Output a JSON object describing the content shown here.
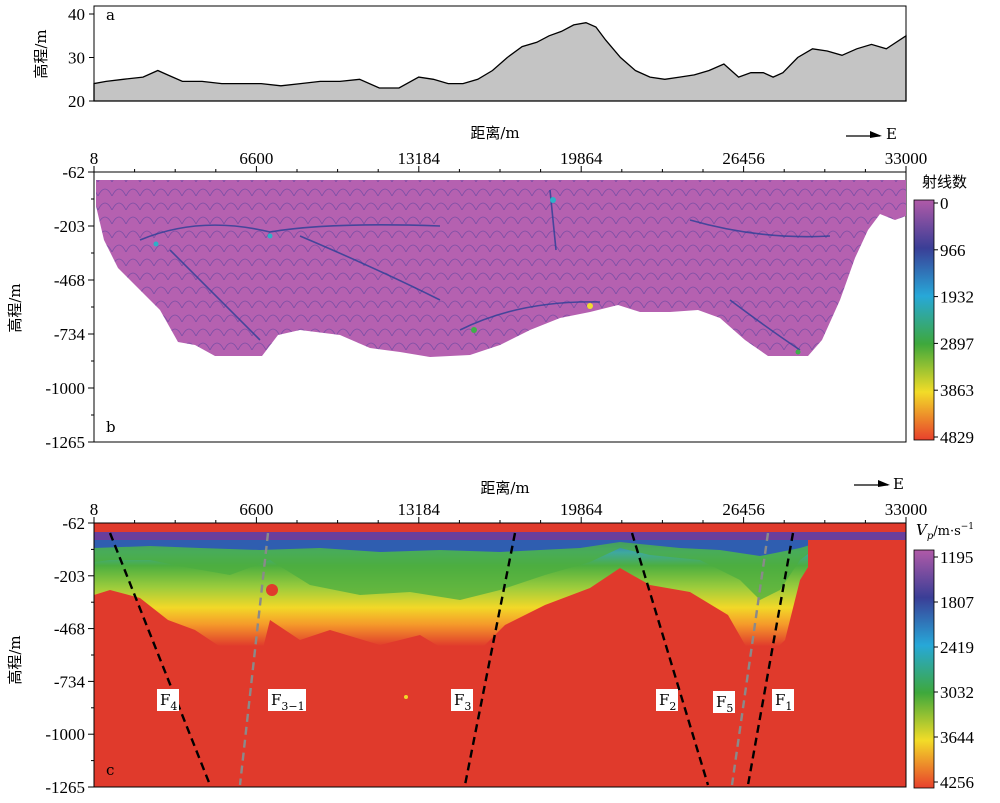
{
  "chart_data": [
    {
      "type": "area",
      "panel_label": "a",
      "ylabel": "高程/m",
      "yticks": [
        "40",
        "30",
        "20"
      ],
      "ylim": [
        20,
        40
      ],
      "xlim": [
        8,
        33000
      ],
      "series": [
        {
          "x": [
            8,
            500,
            1200,
            2000,
            2600,
            3000,
            3600,
            4400,
            5200,
            6000,
            6800,
            7600,
            8400,
            9200,
            10000,
            10800,
            11600,
            12400,
            13200,
            13800,
            14400,
            15000,
            15600,
            16200,
            16800,
            17400,
            18000,
            18500,
            19000,
            19500,
            20000,
            20400,
            20800,
            21400,
            22000,
            22600,
            23200,
            23800,
            24400,
            25000,
            25600,
            26200,
            26700,
            27200,
            27600,
            28000,
            28600,
            29200,
            29800,
            30400,
            31000,
            31600,
            32200,
            33000
          ],
          "y": [
            24,
            24.5,
            25,
            25.5,
            27,
            26,
            24.5,
            24.5,
            24,
            24,
            24,
            23.5,
            24,
            24.5,
            24.5,
            25,
            23,
            23,
            25.5,
            25,
            24,
            24,
            25,
            27,
            30,
            32.5,
            33.5,
            35,
            36,
            37.5,
            38,
            37,
            34,
            30,
            27,
            25.5,
            25,
            25.5,
            26,
            27,
            28.5,
            25.5,
            26.5,
            26.5,
            25.5,
            26.5,
            30,
            32,
            31.5,
            30.5,
            32,
            33,
            32,
            35
          ]
        }
      ]
    },
    {
      "type": "heatmap",
      "panel_label": "b",
      "xlabel": "距离/m",
      "xticks": [
        "8",
        "6600",
        "13184",
        "19864",
        "26456",
        "33000"
      ],
      "ylabel": "高程/m",
      "yticks": [
        "-62",
        "-203",
        "-468",
        "-734",
        "-1000",
        "-1265"
      ],
      "direction_label": "E",
      "colorbar_title": "射线数",
      "colorbar_ticks": [
        "0",
        "966",
        "1932",
        "2897",
        "3863",
        "4829"
      ],
      "colorscale": [
        "#b05aa8",
        "#3a3e96",
        "#27a8d8",
        "#3ea83c",
        "#f2dc28",
        "#e8402c"
      ]
    },
    {
      "type": "heatmap",
      "panel_label": "c",
      "xlabel": "距离/m",
      "xticks": [
        "8",
        "6600",
        "13184",
        "19864",
        "26456",
        "33000"
      ],
      "ylabel": "高程/m",
      "yticks": [
        "-62",
        "-203",
        "-468",
        "-734",
        "-1000",
        "-1265"
      ],
      "direction_label": "E",
      "colorbar_title": "V",
      "colorbar_sub": "p",
      "colorbar_unit": "/m·s",
      "colorbar_unit_sup": "−1",
      "colorbar_ticks": [
        "1195",
        "1807",
        "2419",
        "3032",
        "3644",
        "4256"
      ],
      "colorscale": [
        "#b05aa8",
        "#3a3e96",
        "#27a8d8",
        "#3ea83c",
        "#f2dc28",
        "#e8402c"
      ],
      "faults": [
        {
          "base": "F",
          "sub": "4"
        },
        {
          "base": "F",
          "sub": "3−1"
        },
        {
          "base": "F",
          "sub": "3"
        },
        {
          "base": "F",
          "sub": "2"
        },
        {
          "base": "F",
          "sub": "5"
        },
        {
          "base": "F",
          "sub": "1"
        }
      ]
    }
  ],
  "colors": {
    "elevation_fill": "#c4c4c4",
    "raycount_fill": "#b561b0",
    "velocity_background": "#e03a2c"
  }
}
